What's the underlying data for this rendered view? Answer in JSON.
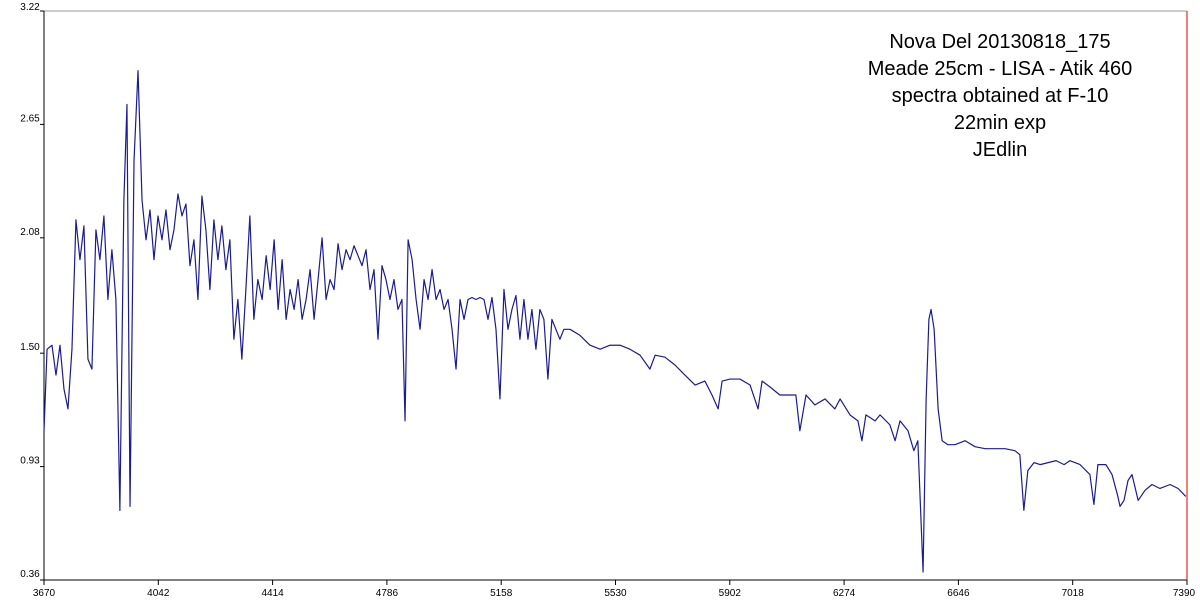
{
  "chart_data": {
    "type": "line",
    "annotations": [
      "Nova Del 20130818_175",
      "Meade 25cm - LISA - Atik 460",
      "spectra obtained at F-10",
      "22min exp",
      "JEdlin"
    ],
    "xlim": [
      3670,
      7390
    ],
    "xticks": [
      3670,
      4042,
      4414,
      4786,
      5158,
      5530,
      5902,
      6274,
      6646,
      7018,
      7390
    ],
    "ylim": [
      0.36,
      3.22
    ],
    "yticks": [
      0.36,
      0.93,
      {
        "value": 1.5,
        "label": "1.50"
      },
      2.08,
      2.65,
      3.22
    ],
    "grid": false,
    "series": [
      {
        "color": "#1c1c8e",
        "x": [
          3670,
          3680,
          3696,
          3709,
          3722,
          3735,
          3748,
          3761,
          3774,
          3787,
          3800,
          3813,
          3826,
          3839,
          3852,
          3865,
          3878,
          3891,
          3904,
          3917,
          3930,
          3940,
          3950,
          3963,
          3976,
          3989,
          4002,
          4015,
          4028,
          4041,
          4054,
          4067,
          4080,
          4093,
          4106,
          4119,
          4132,
          4145,
          4158,
          4171,
          4184,
          4197,
          4210,
          4223,
          4236,
          4249,
          4262,
          4275,
          4288,
          4301,
          4314,
          4327,
          4340,
          4353,
          4366,
          4380,
          4393,
          4406,
          4419,
          4432,
          4445,
          4458,
          4471,
          4484,
          4497,
          4510,
          4523,
          4536,
          4549,
          4562,
          4575,
          4588,
          4601,
          4614,
          4627,
          4640,
          4653,
          4666,
          4679,
          4692,
          4705,
          4718,
          4731,
          4744,
          4757,
          4770,
          4783,
          4796,
          4809,
          4822,
          4835,
          4845,
          4855,
          4868,
          4881,
          4894,
          4907,
          4920,
          4933,
          4946,
          4959,
          4972,
          4985,
          4998,
          5011,
          5024,
          5037,
          5050,
          5063,
          5076,
          5089,
          5102,
          5115,
          5128,
          5141,
          5154,
          5167,
          5180,
          5193,
          5206,
          5219,
          5232,
          5245,
          5258,
          5271,
          5284,
          5297,
          5310,
          5323,
          5336,
          5349,
          5362,
          5382,
          5414,
          5447,
          5480,
          5512,
          5545,
          5577,
          5610,
          5642,
          5659,
          5691,
          5724,
          5756,
          5789,
          5821,
          5844,
          5864,
          5877,
          5903,
          5935,
          5968,
          5994,
          6007,
          6033,
          6065,
          6098,
          6117,
          6130,
          6150,
          6179,
          6212,
          6244,
          6261,
          6293,
          6319,
          6332,
          6345,
          6375,
          6391,
          6423,
          6440,
          6456,
          6482,
          6501,
          6514,
          6531,
          6541,
          6550,
          6557,
          6567,
          6580,
          6593,
          6612,
          6635,
          6668,
          6700,
          6733,
          6765,
          6798,
          6830,
          6846,
          6859,
          6872,
          6892,
          6912,
          6938,
          6964,
          6990,
          7009,
          7042,
          7074,
          7087,
          7100,
          7126,
          7146,
          7165,
          7172,
          7185,
          7198,
          7211,
          7231,
          7253,
          7276,
          7302,
          7335,
          7361,
          7386
        ],
        "values": [
          1.11,
          1.52,
          1.54,
          1.39,
          1.54,
          1.32,
          1.22,
          1.52,
          2.17,
          1.97,
          2.14,
          1.47,
          1.42,
          2.12,
          1.97,
          2.19,
          1.77,
          2.02,
          1.77,
          0.71,
          2.27,
          2.75,
          0.73,
          2.47,
          2.92,
          2.27,
          2.07,
          2.22,
          1.97,
          2.19,
          2.07,
          2.22,
          2.02,
          2.12,
          2.3,
          2.19,
          2.25,
          1.94,
          2.07,
          1.77,
          2.29,
          2.12,
          1.82,
          2.17,
          1.97,
          2.14,
          1.92,
          2.07,
          1.57,
          1.77,
          1.47,
          1.82,
          2.19,
          1.67,
          1.87,
          1.77,
          1.99,
          1.82,
          2.07,
          1.72,
          1.97,
          1.67,
          1.82,
          1.72,
          1.87,
          1.67,
          1.77,
          1.92,
          1.67,
          1.87,
          2.08,
          1.77,
          1.87,
          1.82,
          2.05,
          1.92,
          2.02,
          1.97,
          2.04,
          1.99,
          1.94,
          2.02,
          1.82,
          1.92,
          1.57,
          1.94,
          1.87,
          1.77,
          1.87,
          1.72,
          1.77,
          1.16,
          2.07,
          1.97,
          1.77,
          1.62,
          1.87,
          1.77,
          1.92,
          1.77,
          1.82,
          1.72,
          1.77,
          1.62,
          1.42,
          1.77,
          1.67,
          1.77,
          1.78,
          1.77,
          1.78,
          1.77,
          1.67,
          1.78,
          1.62,
          1.27,
          1.82,
          1.62,
          1.72,
          1.79,
          1.57,
          1.77,
          1.57,
          1.72,
          1.52,
          1.72,
          1.67,
          1.37,
          1.67,
          1.62,
          1.57,
          1.62,
          1.62,
          1.59,
          1.54,
          1.52,
          1.54,
          1.54,
          1.52,
          1.49,
          1.42,
          1.49,
          1.48,
          1.44,
          1.39,
          1.34,
          1.36,
          1.29,
          1.22,
          1.36,
          1.37,
          1.37,
          1.34,
          1.22,
          1.36,
          1.33,
          1.29,
          1.29,
          1.29,
          1.11,
          1.29,
          1.24,
          1.27,
          1.22,
          1.27,
          1.19,
          1.16,
          1.06,
          1.19,
          1.16,
          1.19,
          1.14,
          1.06,
          1.16,
          1.11,
          1.01,
          1.06,
          0.4,
          1.27,
          1.67,
          1.72,
          1.62,
          1.22,
          1.06,
          1.04,
          1.04,
          1.06,
          1.03,
          1.02,
          1.02,
          1.02,
          1.01,
          0.99,
          0.71,
          0.91,
          0.95,
          0.94,
          0.95,
          0.96,
          0.94,
          0.96,
          0.94,
          0.89,
          0.74,
          0.94,
          0.94,
          0.89,
          0.78,
          0.73,
          0.76,
          0.86,
          0.89,
          0.76,
          0.81,
          0.84,
          0.82,
          0.84,
          0.82,
          0.78
        ]
      }
    ]
  }
}
